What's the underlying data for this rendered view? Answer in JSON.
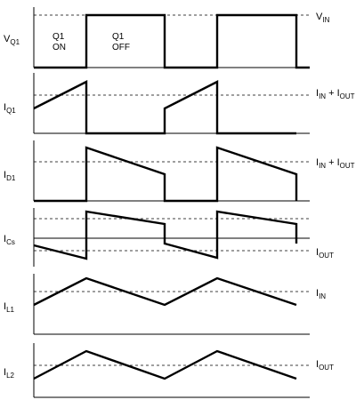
{
  "panels": [
    {
      "id": "vq1",
      "signal_main": "V",
      "signal_sub": "Q1",
      "annotations": [
        {
          "id": "q1-on",
          "lines": [
            "Q1",
            "ON"
          ]
        },
        {
          "id": "q1-off",
          "lines": [
            "Q1",
            "OFF"
          ]
        }
      ],
      "refs": [
        {
          "id": "vin",
          "parts": [
            {
              "t": "V",
              "s": "IN"
            }
          ]
        }
      ]
    },
    {
      "id": "iq1",
      "signal_main": "I",
      "signal_sub": "Q1",
      "refs": [
        {
          "id": "iin-iout",
          "parts": [
            {
              "t": "I",
              "s": "IN"
            },
            {
              "t": " + I",
              "s": "OUT"
            }
          ]
        }
      ]
    },
    {
      "id": "id1",
      "signal_main": "I",
      "signal_sub": "D1",
      "refs": [
        {
          "id": "iin-iout",
          "parts": [
            {
              "t": "I",
              "s": "IN"
            },
            {
              "t": " + I",
              "s": "OUT"
            }
          ]
        }
      ]
    },
    {
      "id": "ics",
      "signal_main": "I",
      "signal_sub": "Cs",
      "refs": [
        {
          "id": "iout",
          "parts": [
            {
              "t": "I",
              "s": "OUT"
            }
          ]
        }
      ]
    },
    {
      "id": "il1",
      "signal_main": "I",
      "signal_sub": "L1",
      "refs": [
        {
          "id": "iin",
          "parts": [
            {
              "t": "I",
              "s": "IN"
            }
          ]
        }
      ]
    },
    {
      "id": "il2",
      "signal_main": "I",
      "signal_sub": "L2",
      "refs": [
        {
          "id": "iout",
          "parts": [
            {
              "t": "I",
              "s": "OUT"
            }
          ]
        }
      ]
    }
  ]
}
